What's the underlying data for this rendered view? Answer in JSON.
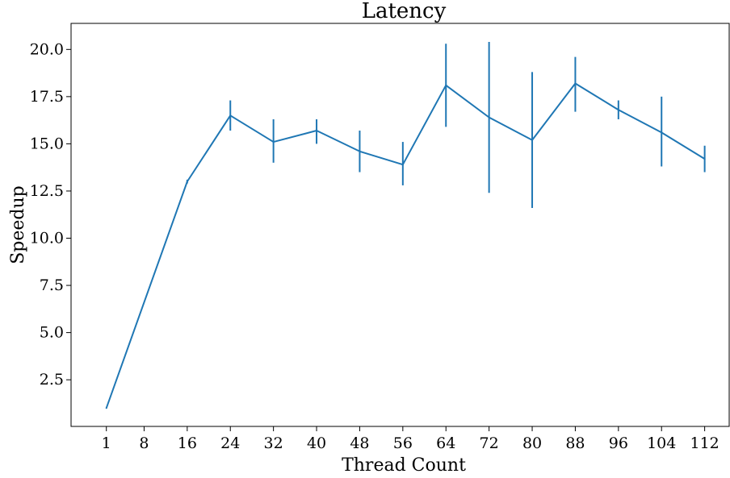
{
  "chart_data": {
    "type": "line",
    "title": "Latency",
    "xlabel": "Thread Count",
    "ylabel": "Speedup",
    "x": [
      1,
      16,
      24,
      32,
      40,
      48,
      56,
      64,
      72,
      80,
      88,
      96,
      104,
      112
    ],
    "xticks": [
      1,
      8,
      16,
      24,
      32,
      40,
      48,
      56,
      64,
      72,
      80,
      88,
      96,
      104,
      112
    ],
    "xtick_labels": [
      "1",
      "8",
      "16",
      "24",
      "32",
      "40",
      "48",
      "56",
      "64",
      "72",
      "80",
      "88",
      "96",
      "104",
      "112"
    ],
    "yticks": [
      2.5,
      5.0,
      7.5,
      10.0,
      12.5,
      15.0,
      17.5,
      20.0
    ],
    "ytick_labels": [
      "2.5",
      "5.0",
      "7.5",
      "10.0",
      "12.5",
      "15.0",
      "17.5",
      "20.0"
    ],
    "xlim": [
      -5.55,
      116.55
    ],
    "ylim": [
      0.03,
      21.38
    ],
    "grid": false,
    "series": [
      {
        "color": "#1f77b4",
        "values": [
          1.0,
          13.0,
          16.5,
          15.1,
          15.7,
          14.6,
          13.9,
          18.1,
          16.4,
          15.2,
          18.2,
          16.8,
          15.6,
          14.2
        ],
        "err_low": [
          1.0,
          12.9,
          15.7,
          14.0,
          15.0,
          13.5,
          12.8,
          15.9,
          12.4,
          11.6,
          16.7,
          16.3,
          13.8,
          13.5
        ],
        "err_high": [
          1.0,
          13.1,
          17.3,
          16.3,
          16.3,
          15.7,
          15.1,
          20.3,
          20.4,
          18.8,
          19.6,
          17.3,
          17.5,
          14.9
        ]
      }
    ]
  }
}
